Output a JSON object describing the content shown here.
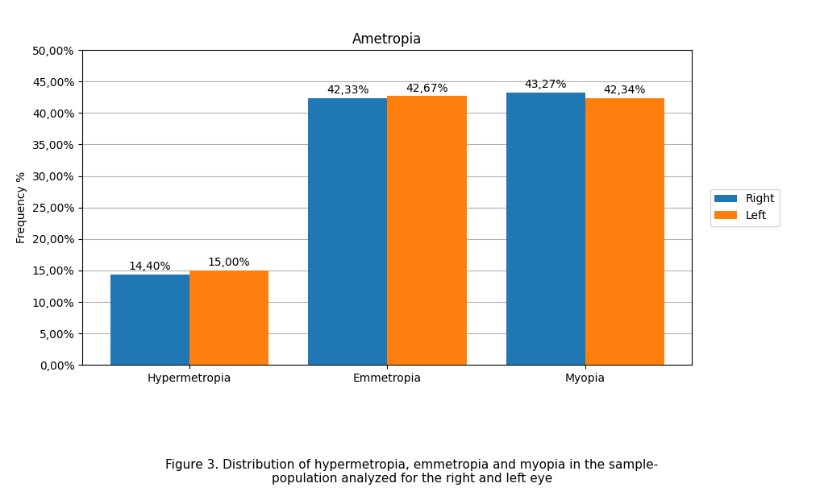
{
  "chart_data": {
    "type": "bar",
    "title": "Ametropia",
    "categories": [
      "Hypermetropia",
      "Emmetropia",
      "Myopia"
    ],
    "series": [
      {
        "name": "Right",
        "values": [
          14.4,
          42.33,
          43.27
        ],
        "value_labels": [
          "14,40%",
          "42,33%",
          "43,27%"
        ]
      },
      {
        "name": "Left",
        "values": [
          15.0,
          42.67,
          42.34
        ],
        "value_labels": [
          "15,00%",
          "42,67%",
          "42,34%"
        ]
      }
    ],
    "y_label": "Frequency %",
    "ylim": [
      0,
      50
    ],
    "yticks": [
      {
        "value": 0,
        "label": "0,00%"
      },
      {
        "value": 5,
        "label": "5,00%"
      },
      {
        "value": 10,
        "label": "10,00%"
      },
      {
        "value": 15,
        "label": "15,00%"
      },
      {
        "value": 20,
        "label": "20,00%"
      },
      {
        "value": 25,
        "label": "25,00%"
      },
      {
        "value": 30,
        "label": "30,00%"
      },
      {
        "value": 35,
        "label": "35,00%"
      },
      {
        "value": 40,
        "label": "40,00%"
      },
      {
        "value": 45,
        "label": "45,00%"
      },
      {
        "value": 50,
        "label": "50,00%"
      }
    ],
    "grid": true,
    "legend": "right",
    "data_labels": true,
    "caption": "Figure 3. Distribution of hypermetropia, emmetropia and myopia in the sample-\npopulation analyzed for the right and left eye"
  }
}
